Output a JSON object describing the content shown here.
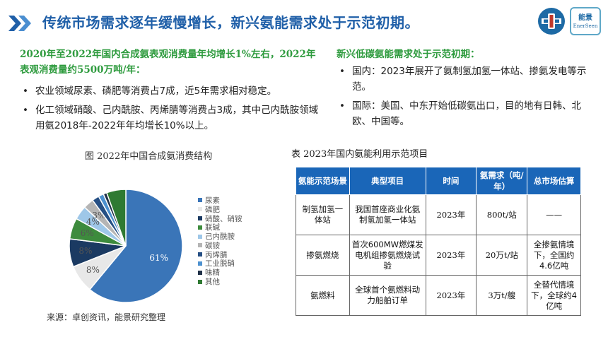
{
  "header": {
    "title": "传统市场需求逐年缓慢增长，新兴氨能需求处于示范初期。",
    "logo_text_cn": "能景",
    "logo_text_en": "EnerSeen"
  },
  "left": {
    "heading": "2020年至2022年国内合成氨表观消费量年均增长1%左右，2022年表观消费量约5500万吨/年：",
    "bullets": [
      "农业领域尿素、磷肥等消费占7成，近5年需求相对稳定。",
      "化工领域硝酸、己内酰胺、丙烯腈等消费占3成，其中己内酰胺领域用氨2018年-2022年年均增长10%以上。"
    ]
  },
  "right": {
    "heading": "新兴低碳氨能需求处于示范初期：",
    "bullets": [
      "国内：2023年展开了氨制氢加氢一体站、掺氨发电等示范。",
      "国际：美国、中东开始低碳氨出口，目的地有日韩、北欧、中国等。"
    ]
  },
  "chart_data": {
    "type": "pie",
    "title": "图 2022年中国合成氨消费结构",
    "slices": [
      {
        "label": "尿素",
        "value": 61,
        "color": "#3a75b8",
        "display": "61%"
      },
      {
        "label": "磷肥",
        "value": 8,
        "color": "#e8e8e8",
        "display": "8%"
      },
      {
        "label": "硝酸、硝铵",
        "value": 8,
        "color": "#1b3a62",
        "display": "8%"
      },
      {
        "label": "联碱",
        "value": 6,
        "color": "#3d8b3d",
        "display": "6%"
      },
      {
        "label": "己内酰胺",
        "value": 4,
        "color": "#9ec7e8",
        "display": "4%"
      },
      {
        "label": "碳铵",
        "value": 3,
        "color": "#b5b5b5",
        "display": "3%"
      },
      {
        "label": "丙烯腈",
        "value": 2,
        "color": "#254f84",
        "display": ""
      },
      {
        "label": "工业脱硝",
        "value": 1.5,
        "color": "#4d91cf",
        "display": ""
      },
      {
        "label": "味精",
        "value": 1,
        "color": "#1f3047",
        "display": ""
      },
      {
        "label": "其他",
        "value": 5.5,
        "color": "#2f7a33",
        "display": ""
      }
    ]
  },
  "source": "来源：卓创资讯，能景研究整理",
  "table": {
    "title": "表 2023年国内氨能利用示范项目",
    "headers": [
      "氨能示范场景",
      "典型项目",
      "时间",
      "氨需求（吨/年）",
      "总市场估算"
    ],
    "rows": [
      [
        "制氢加氢一体站",
        "我国首座商业化氨制氢加氢一体站",
        "2023年",
        "800t/站",
        "——"
      ],
      [
        "掺氨燃烧",
        "首次600MW燃煤发电机组掺氨燃烧试验",
        "2023年",
        "20万t/站",
        "全掺氨情境下，全国约4.6亿吨"
      ],
      [
        "氨燃料",
        "全球首个氨燃料动力船舶订单",
        "2023年",
        "3万t/艘",
        "全替代情境下，全球约4亿吨"
      ]
    ]
  }
}
